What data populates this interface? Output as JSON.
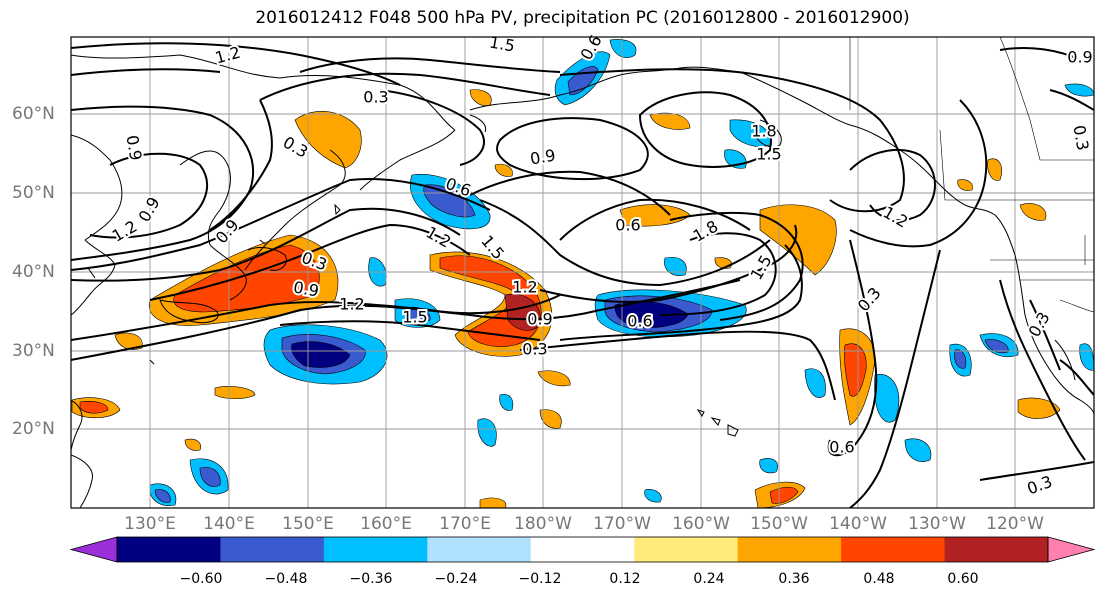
{
  "title": "2016012412 F048 500 hPa PV, precipitation PC (2016012800 - 2016012900)",
  "lat_labels": [
    "60°N",
    "50°N",
    "40°N",
    "30°N",
    "20°N"
  ],
  "lon_labels": [
    "130°E",
    "140°E",
    "150°E",
    "160°E",
    "170°E",
    "180°W",
    "170°W",
    "160°W",
    "150°W",
    "140°W",
    "130°W",
    "120°W"
  ],
  "colorbar": {
    "ticks": [
      "−0.60",
      "−0.48",
      "−0.36",
      "−0.24",
      "−0.12",
      "0.12",
      "0.24",
      "0.36",
      "0.48",
      "0.60"
    ],
    "colors": [
      "#9b30d9",
      "#000080",
      "#3a5bd0",
      "#00bfff",
      "#b0e2ff",
      "#ffffff",
      "#ffea7a",
      "#ffa500",
      "#ff4500",
      "#b22222",
      "#ff80b0"
    ]
  },
  "contour_labels": [
    "1.2",
    "1.5",
    "0.6",
    "0.3",
    "0.9",
    "0.3",
    "0.9",
    "1.2",
    "0.9",
    "0.9",
    "1.2",
    "0.6",
    "1.5",
    "0.6",
    "0.9",
    "1.8",
    "0.3",
    "0.9",
    "1.2",
    "1.5",
    "0.3",
    "1.5",
    "1.2",
    "1.8",
    "1.5",
    "0.6",
    "0.3",
    "0.6",
    "0.3",
    "1.2",
    "0.9",
    "0.3",
    "0.3"
  ]
}
